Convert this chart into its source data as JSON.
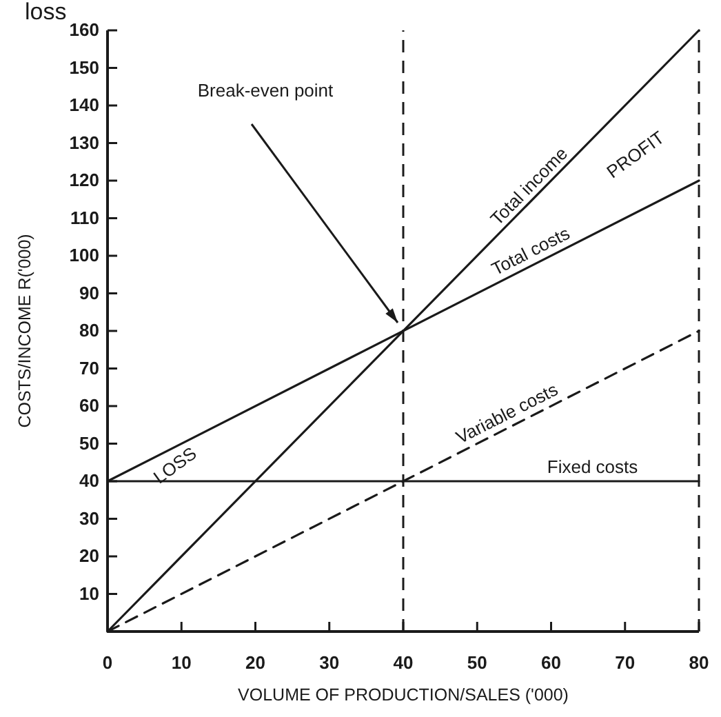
{
  "chart_data": {
    "type": "line",
    "xlabel": "VOLUME OF PRODUCTION/SALES ('000)",
    "ylabel": "COSTS/INCOME R('000)",
    "x": [
      0,
      80
    ],
    "xlim": [
      0,
      80
    ],
    "xticks": [
      0,
      10,
      20,
      30,
      40,
      50,
      60,
      70,
      80
    ],
    "ylim": [
      0,
      160
    ],
    "yticks": [
      10,
      20,
      30,
      40,
      50,
      60,
      70,
      80,
      90,
      100,
      110,
      120,
      130,
      140,
      150,
      160
    ],
    "grid": false,
    "marker": "none",
    "series": [
      {
        "name": "Total income",
        "color": "#1a1a1a",
        "values": [
          0,
          160
        ],
        "line_style": "solid"
      },
      {
        "name": "Total costs",
        "color": "#1a1a1a",
        "values": [
          40,
          120
        ],
        "line_style": "solid"
      },
      {
        "name": "Variable costs",
        "color": "#1a1a1a",
        "values": [
          0,
          80
        ],
        "line_style": "dashed"
      },
      {
        "name": "Fixed costs",
        "color": "#1a1a1a",
        "values": [
          40,
          40
        ],
        "line_style": "solid"
      }
    ],
    "ref_lines": [
      {
        "axis": "x",
        "value": 40,
        "label": null,
        "color": "#1a1a1a",
        "line_style": "dashed"
      },
      {
        "axis": "x",
        "value": 80,
        "label": null,
        "color": "#1a1a1a",
        "line_style": "dashed"
      }
    ],
    "annotations": [
      "Break-even point",
      "PROFIT",
      "LOSS",
      "loss"
    ]
  }
}
